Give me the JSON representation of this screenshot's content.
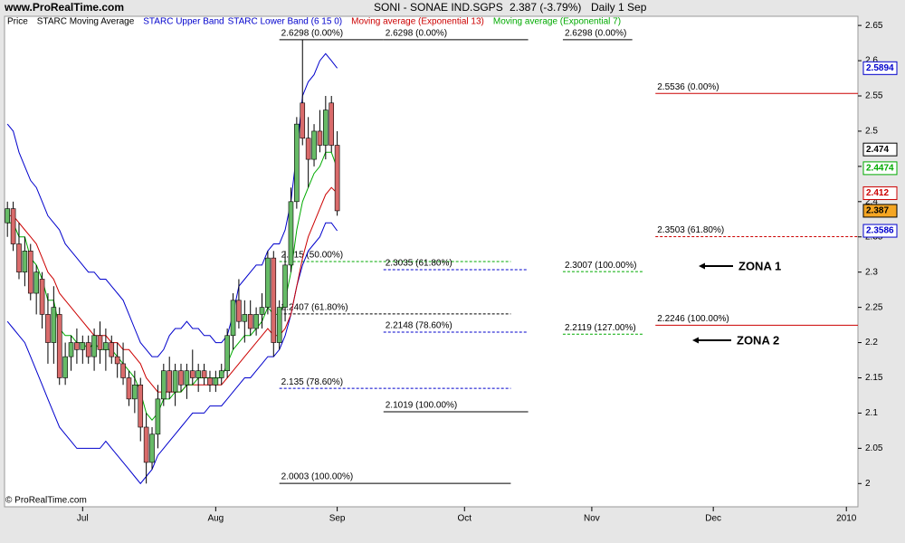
{
  "header": {
    "site": "www.ProRealTime.com",
    "symbol": "SONI - SONAE IND.SGPS",
    "quote": "2.387 (-3.79%)",
    "period": "Daily  1 Sep",
    "copyright": "© ProRealTime.com"
  },
  "chart_data": {
    "type": "candlestick",
    "legend": [
      {
        "text": "Price",
        "color": "#000000"
      },
      {
        "text": "STARC Moving Average",
        "color": "#000000"
      }
    ],
    "x": [
      0,
      1,
      2,
      3,
      4,
      5,
      6,
      7,
      8,
      9,
      10,
      11,
      12,
      13,
      14,
      15,
      16,
      17,
      18,
      19,
      20,
      21,
      22,
      23,
      24,
      25,
      26,
      27,
      28,
      29,
      30,
      31,
      32,
      33,
      34,
      35,
      36,
      37,
      38,
      39,
      40,
      41,
      42,
      43,
      44,
      45,
      46,
      47,
      48,
      49,
      50,
      51,
      52,
      53,
      54,
      55,
      56,
      57
    ],
    "open": [
      2.37,
      2.39,
      2.34,
      2.3,
      2.33,
      2.27,
      2.29,
      2.24,
      2.2,
      2.24,
      2.15,
      2.18,
      2.2,
      2.19,
      2.2,
      2.18,
      2.21,
      2.19,
      2.2,
      2.18,
      2.17,
      2.15,
      2.12,
      2.14,
      2.08,
      2.03,
      2.07,
      2.12,
      2.16,
      2.13,
      2.16,
      2.14,
      2.16,
      2.15,
      2.16,
      2.15,
      2.14,
      2.15,
      2.16,
      2.21,
      2.26,
      2.23,
      2.24,
      2.22,
      2.24,
      2.25,
      2.32,
      2.2,
      2.25,
      2.31,
      2.4,
      2.54,
      2.49,
      2.46,
      2.5,
      2.48,
      2.54,
      2.48
    ],
    "high": [
      2.4,
      2.4,
      2.37,
      2.35,
      2.34,
      2.31,
      2.3,
      2.27,
      2.28,
      2.25,
      2.2,
      2.21,
      2.22,
      2.21,
      2.21,
      2.22,
      2.23,
      2.22,
      2.21,
      2.2,
      2.2,
      2.16,
      2.16,
      2.15,
      2.1,
      2.08,
      2.14,
      2.17,
      2.18,
      2.17,
      2.17,
      2.17,
      2.19,
      2.17,
      2.17,
      2.16,
      2.16,
      2.17,
      2.22,
      2.27,
      2.29,
      2.26,
      2.26,
      2.25,
      2.27,
      2.33,
      2.33,
      2.26,
      2.33,
      2.42,
      2.52,
      2.63,
      2.52,
      2.51,
      2.53,
      2.55,
      2.55,
      2.5
    ],
    "low": [
      2.35,
      2.33,
      2.29,
      2.28,
      2.26,
      2.24,
      2.22,
      2.17,
      2.17,
      2.14,
      2.14,
      2.16,
      2.17,
      2.17,
      2.17,
      2.16,
      2.17,
      2.16,
      2.17,
      2.15,
      2.14,
      2.11,
      2.1,
      2.06,
      2.0,
      2.02,
      2.05,
      2.11,
      2.12,
      2.11,
      2.13,
      2.12,
      2.14,
      2.13,
      2.14,
      2.13,
      2.13,
      2.14,
      2.15,
      2.19,
      2.22,
      2.2,
      2.21,
      2.21,
      2.22,
      2.24,
      2.18,
      2.19,
      2.23,
      2.3,
      2.39,
      2.48,
      2.42,
      2.45,
      2.47,
      2.46,
      2.47,
      2.38
    ],
    "close": [
      2.39,
      2.34,
      2.3,
      2.33,
      2.27,
      2.3,
      2.24,
      2.2,
      2.25,
      2.15,
      2.18,
      2.2,
      2.19,
      2.2,
      2.18,
      2.21,
      2.19,
      2.2,
      2.18,
      2.17,
      2.15,
      2.12,
      2.14,
      2.08,
      2.03,
      2.07,
      2.12,
      2.16,
      2.13,
      2.16,
      2.14,
      2.16,
      2.15,
      2.16,
      2.15,
      2.14,
      2.15,
      2.16,
      2.21,
      2.26,
      2.23,
      2.24,
      2.22,
      2.24,
      2.25,
      2.32,
      2.2,
      2.25,
      2.31,
      2.4,
      2.51,
      2.49,
      2.46,
      2.5,
      2.48,
      2.53,
      2.48,
      2.387
    ],
    "up_color": "#66bb66",
    "down_color": "#d96b6b",
    "series": [
      {
        "name": "STARC Upper Band",
        "color": "#0000cc",
        "values": [
          2.51,
          2.5,
          2.47,
          2.45,
          2.43,
          2.42,
          2.4,
          2.38,
          2.37,
          2.36,
          2.34,
          2.33,
          2.32,
          2.31,
          2.3,
          2.3,
          2.29,
          2.29,
          2.28,
          2.27,
          2.26,
          2.24,
          2.22,
          2.2,
          2.19,
          2.18,
          2.18,
          2.19,
          2.21,
          2.22,
          2.22,
          2.23,
          2.22,
          2.22,
          2.21,
          2.21,
          2.2,
          2.2,
          2.21,
          2.24,
          2.28,
          2.29,
          2.3,
          2.31,
          2.31,
          2.33,
          2.34,
          2.34,
          2.36,
          2.4,
          2.47,
          2.55,
          2.57,
          2.58,
          2.6,
          2.61,
          2.6,
          2.5894
        ]
      },
      {
        "name": "STARC Lower Band (6 15 0)",
        "color": "#0000cc",
        "values": [
          2.23,
          2.22,
          2.21,
          2.2,
          2.18,
          2.16,
          2.14,
          2.12,
          2.1,
          2.08,
          2.07,
          2.06,
          2.05,
          2.05,
          2.05,
          2.05,
          2.05,
          2.06,
          2.05,
          2.04,
          2.03,
          2.02,
          2.01,
          2.0,
          2.01,
          2.02,
          2.04,
          2.05,
          2.06,
          2.07,
          2.08,
          2.09,
          2.1,
          2.1,
          2.1,
          2.11,
          2.11,
          2.11,
          2.12,
          2.13,
          2.14,
          2.15,
          2.15,
          2.16,
          2.17,
          2.18,
          2.18,
          2.19,
          2.21,
          2.24,
          2.28,
          2.31,
          2.33,
          2.34,
          2.35,
          2.37,
          2.37,
          2.3586
        ]
      },
      {
        "name": "Moving average (Exponential 13)",
        "color": "#cc0000",
        "values": [
          2.38,
          2.38,
          2.37,
          2.36,
          2.35,
          2.34,
          2.32,
          2.3,
          2.29,
          2.27,
          2.26,
          2.25,
          2.24,
          2.23,
          2.22,
          2.21,
          2.21,
          2.21,
          2.2,
          2.2,
          2.19,
          2.19,
          2.18,
          2.17,
          2.15,
          2.14,
          2.13,
          2.13,
          2.13,
          2.13,
          2.13,
          2.14,
          2.14,
          2.14,
          2.14,
          2.14,
          2.14,
          2.14,
          2.15,
          2.16,
          2.17,
          2.18,
          2.19,
          2.2,
          2.21,
          2.22,
          2.21,
          2.21,
          2.22,
          2.24,
          2.28,
          2.32,
          2.35,
          2.37,
          2.39,
          2.41,
          2.42,
          2.412
        ]
      },
      {
        "name": "Moving average (Exponential 7)",
        "color": "#00aa00",
        "values": [
          2.37,
          2.37,
          2.35,
          2.35,
          2.32,
          2.31,
          2.29,
          2.26,
          2.26,
          2.22,
          2.21,
          2.21,
          2.2,
          2.2,
          2.19,
          2.2,
          2.19,
          2.19,
          2.19,
          2.18,
          2.17,
          2.16,
          2.15,
          2.13,
          2.1,
          2.09,
          2.1,
          2.12,
          2.12,
          2.13,
          2.13,
          2.14,
          2.14,
          2.15,
          2.15,
          2.15,
          2.15,
          2.15,
          2.17,
          2.19,
          2.2,
          2.21,
          2.21,
          2.22,
          2.23,
          2.25,
          2.24,
          2.24,
          2.26,
          2.3,
          2.36,
          2.4,
          2.42,
          2.44,
          2.45,
          2.47,
          2.47,
          2.4474
        ]
      }
    ],
    "price_tags": [
      {
        "value": 2.5894,
        "color": "#0000cc",
        "fill": "#ffffff"
      },
      {
        "value": 2.474,
        "color": "#000000",
        "fill": "#ffffff"
      },
      {
        "value": 2.4474,
        "color": "#00aa00",
        "fill": "#ffffff"
      },
      {
        "value": 2.412,
        "color": "#cc0000",
        "fill": "#ffffff"
      },
      {
        "value": 2.387,
        "color": "#000000",
        "fill": "#f5a623"
      },
      {
        "value": 2.3586,
        "color": "#0000cc",
        "fill": "#ffffff"
      }
    ],
    "fib_levels": [
      {
        "value": 2.6298,
        "label": "2.6298 (0.00%)",
        "x0": 47,
        "x1": 65,
        "color": "#000000",
        "dashed": false
      },
      {
        "value": 2.6298,
        "label": "2.6298 (0.00%)",
        "x0": 65,
        "x1": 90,
        "color": "#000000",
        "dashed": false
      },
      {
        "value": 2.6298,
        "label": "2.6298 (0.00%)",
        "x0": 96,
        "x1": 108,
        "color": "#000000",
        "dashed": false
      },
      {
        "value": 2.5536,
        "label": "2.5536 (0.00%)",
        "x0": 112,
        "x1": 147,
        "color": "#cc0000",
        "dashed": false
      },
      {
        "value": 2.3503,
        "label": "2.3503 (61.80%)",
        "x0": 112,
        "x1": 147,
        "color": "#cc0000",
        "dashed": true
      },
      {
        "value": 2.315,
        "label": "2.315 (50.00%)",
        "x0": 47,
        "x1": 87,
        "color": "#00aa00",
        "dashed": true
      },
      {
        "value": 2.3035,
        "label": "2.3035 (61.80%)",
        "x0": 65,
        "x1": 90,
        "color": "#0000cc",
        "dashed": true
      },
      {
        "value": 2.3007,
        "label": "2.3007 (100.00%)",
        "x0": 96,
        "x1": 110,
        "color": "#00aa00",
        "dashed": true
      },
      {
        "value": 2.2407,
        "label": "2.2407 (61.80%)",
        "x0": 47,
        "x1": 87,
        "color": "#000000",
        "dashed": true
      },
      {
        "value": 2.2246,
        "label": "2.2246 (100.00%)",
        "x0": 112,
        "x1": 147,
        "color": "#cc0000",
        "dashed": false
      },
      {
        "value": 2.2148,
        "label": "2.2148 (78.60%)",
        "x0": 65,
        "x1": 90,
        "color": "#0000cc",
        "dashed": true
      },
      {
        "value": 2.2119,
        "label": "2.2119 (127.00%)",
        "x0": 96,
        "x1": 110,
        "color": "#00aa00",
        "dashed": true
      },
      {
        "value": 2.135,
        "label": "2.135 (78.60%)",
        "x0": 47,
        "x1": 87,
        "color": "#0000cc",
        "dashed": true
      },
      {
        "value": 2.1019,
        "label": "2.1019 (100.00%)",
        "x0": 65,
        "x1": 90,
        "color": "#000000",
        "dashed": false
      },
      {
        "value": 2.0003,
        "label": "2.0003 (100.00%)",
        "x0": 47,
        "x1": 87,
        "color": "#000000",
        "dashed": false
      }
    ],
    "annotations": [
      {
        "text": "ZONA 1"
      },
      {
        "text": "ZONA 2"
      }
    ],
    "xlim": [
      -0.5,
      147
    ],
    "xticks": [
      {
        "value": 13,
        "label": "Jul"
      },
      {
        "value": 36,
        "label": "Aug"
      },
      {
        "value": 57,
        "label": "Sep"
      },
      {
        "value": 79,
        "label": "Oct"
      },
      {
        "value": 101,
        "label": "Nov"
      },
      {
        "value": 122,
        "label": "Dec"
      },
      {
        "value": 145,
        "label": "2010"
      }
    ],
    "ylim": [
      1.967,
      2.663
    ],
    "yticks": [
      2,
      2.05,
      2.1,
      2.15,
      2.2,
      2.25,
      2.3,
      2.35,
      2.4,
      2.45,
      2.5,
      2.55,
      2.6,
      2.65
    ]
  }
}
